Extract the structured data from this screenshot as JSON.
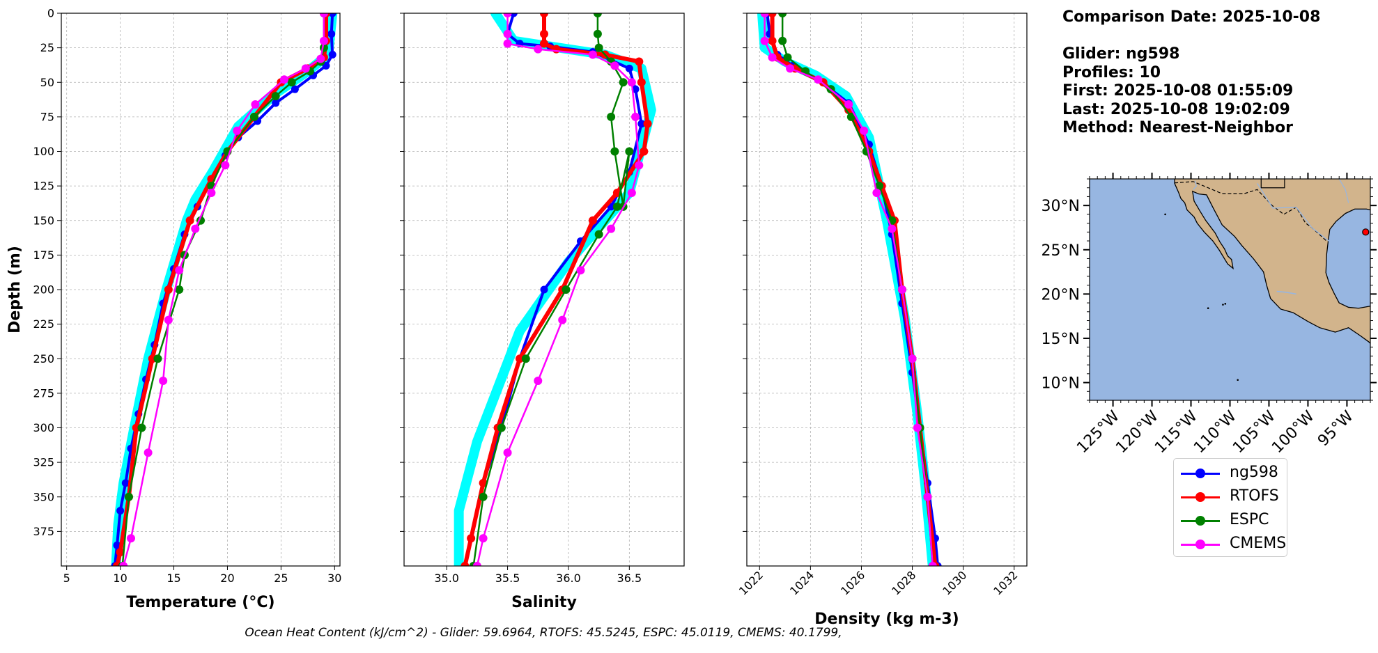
{
  "info": {
    "line1": "Comparison Date: 2025-10-08",
    "line2": "Glider: ng598",
    "line3": "Profiles: 10",
    "line4": "First: 2025-10-08 01:55:09",
    "line5": "Last: 2025-10-08 19:02:09",
    "line6": "Method: Nearest-Neighbor"
  },
  "footnote": "Ocean Heat Content (kJ/cm^2) - Glider: 59.6964,  RTOFS: 45.5245,  ESPC: 45.0119,  CMEMS: 40.1799,",
  "colors": {
    "ng598": "#0000ff",
    "RTOFS": "#ff0000",
    "ESPC": "#008000",
    "CMEMS": "#ff00ff",
    "ensemble": "#00ffff",
    "ocean": "#97b6e1",
    "land": "#d2b48c",
    "glider_marker": "#ff0000"
  },
  "chart_data": [
    {
      "type": "line",
      "xlabel": "Temperature (°C)",
      "ylabel": "Depth (m)",
      "xlim": [
        4.5,
        30.5
      ],
      "ylim": [
        400,
        0
      ],
      "xticks": [
        5,
        10,
        15,
        20,
        25,
        30
      ],
      "yticks": [
        0,
        25,
        50,
        75,
        100,
        125,
        150,
        175,
        200,
        225,
        250,
        275,
        300,
        325,
        350,
        375
      ],
      "grid": true,
      "series": [
        {
          "name": "ng598",
          "x": [
            29.8,
            29.7,
            29.8,
            29.2,
            28.0,
            26.3,
            24.5,
            22.8,
            21.0,
            19.8,
            18.5,
            17.2,
            16.0,
            15.0,
            14.0,
            13.2,
            12.4,
            11.7,
            11.0,
            10.5,
            10.0,
            9.7,
            9.5
          ],
          "y": [
            0,
            15,
            30,
            38,
            45,
            55,
            65,
            78,
            90,
            103,
            120,
            140,
            160,
            185,
            210,
            240,
            265,
            290,
            315,
            340,
            360,
            385,
            400
          ]
        },
        {
          "name": "RTOFS",
          "x": [
            29.2,
            29.2,
            29.0,
            27.5,
            25.0,
            22.5,
            20.0,
            18.5,
            16.5,
            14.5,
            13.0,
            11.5,
            10.8,
            10.0,
            9.7
          ],
          "y": [
            0,
            20,
            32,
            40,
            50,
            75,
            100,
            120,
            150,
            200,
            250,
            300,
            350,
            390,
            400
          ]
        },
        {
          "name": "ESPC",
          "x": [
            29.0,
            29.0,
            28.7,
            27.7,
            26.0,
            24.5,
            22.5,
            20.0,
            18.5,
            17.5,
            16.0,
            15.5,
            13.5,
            12.0,
            10.8,
            10.2
          ],
          "y": [
            0,
            25,
            35,
            42,
            50,
            60,
            75,
            100,
            125,
            150,
            175,
            200,
            250,
            300,
            350,
            400
          ]
        },
        {
          "name": "CMEMS",
          "x": [
            29.0,
            29.0,
            28.7,
            27.3,
            25.3,
            22.6,
            20.9,
            19.8,
            18.5,
            17.0,
            15.5,
            14.5,
            14.0,
            12.6,
            11.0,
            10.3
          ],
          "y": [
            0,
            20,
            33,
            40,
            48,
            66,
            85,
            110,
            130,
            156,
            186,
            222,
            266,
            318,
            380,
            400
          ]
        }
      ],
      "ensemble": {
        "x": [
          29.8,
          29.4,
          27.5,
          24.5,
          21.0,
          18.6,
          17.0,
          16.2,
          14.3,
          12.6,
          11.3,
          10.3,
          9.8,
          9.6
        ],
        "y": [
          0,
          30,
          42,
          58,
          82,
          115,
          135,
          150,
          200,
          250,
          300,
          340,
          370,
          400
        ]
      }
    },
    {
      "type": "line",
      "xlabel": "Salinity",
      "ylabel": "",
      "xlim": [
        34.65,
        36.95
      ],
      "ylim": [
        400,
        0
      ],
      "xticks": [
        35.0,
        35.5,
        36.0,
        36.5
      ],
      "xtick_labels": [
        "35.0",
        "35.5",
        "36.0",
        "36.5"
      ],
      "yticks": [
        0,
        25,
        50,
        75,
        100,
        125,
        150,
        175,
        200,
        225,
        250,
        275,
        300,
        325,
        350,
        375
      ],
      "grid": true,
      "series": [
        {
          "name": "ng598",
          "x": [
            35.55,
            35.5,
            35.6,
            35.85,
            36.2,
            36.5,
            36.55,
            36.6,
            36.5,
            36.35,
            36.1,
            35.8,
            35.6,
            35.45,
            35.3,
            35.2,
            35.15
          ],
          "y": [
            0,
            15,
            22,
            24,
            28,
            40,
            55,
            80,
            115,
            140,
            165,
            200,
            250,
            300,
            340,
            380,
            400
          ]
        },
        {
          "name": "RTOFS",
          "x": [
            35.8,
            35.8,
            35.8,
            35.9,
            36.3,
            36.58,
            36.6,
            36.65,
            36.62,
            36.4,
            36.2,
            35.95,
            35.6,
            35.42,
            35.3,
            35.2,
            35.15
          ],
          "y": [
            0,
            15,
            22,
            26,
            30,
            35,
            50,
            80,
            100,
            130,
            150,
            200,
            250,
            300,
            340,
            380,
            400
          ]
        },
        {
          "name": "ESPC",
          "x": [
            36.24,
            36.24,
            36.25,
            36.35,
            36.45,
            36.35,
            36.38,
            36.45,
            36.5,
            36.4,
            36.25,
            35.98,
            35.65,
            35.45,
            35.3,
            35.22
          ],
          "y": [
            0,
            15,
            25,
            35,
            50,
            75,
            100,
            140,
            100,
            140,
            160,
            200,
            250,
            300,
            350,
            400
          ]
        },
        {
          "name": "CMEMS",
          "x": [
            35.5,
            35.5,
            35.5,
            35.75,
            36.2,
            36.38,
            36.52,
            36.55,
            36.58,
            36.52,
            36.35,
            36.1,
            35.95,
            35.75,
            35.5,
            35.3,
            35.25
          ],
          "y": [
            0,
            15,
            22,
            26,
            30,
            38,
            50,
            75,
            110,
            130,
            156,
            186,
            222,
            266,
            318,
            380,
            400
          ]
        }
      ],
      "ensemble": {
        "x": [
          35.4,
          35.55,
          36.3,
          36.6,
          36.68,
          36.5,
          36.0,
          35.6,
          35.25,
          35.1,
          35.1
        ],
        "y": [
          0,
          20,
          30,
          40,
          70,
          130,
          180,
          230,
          310,
          360,
          400
        ]
      }
    },
    {
      "type": "line",
      "xlabel": "Density (kg m-3)",
      "ylabel": "",
      "xlim": [
        1021.5,
        1032.5
      ],
      "ylim": [
        400,
        0
      ],
      "xticks": [
        1022,
        1024,
        1026,
        1028,
        1030,
        1032
      ],
      "yticks": [
        0,
        25,
        50,
        75,
        100,
        125,
        150,
        175,
        200,
        225,
        250,
        275,
        300,
        325,
        350,
        375
      ],
      "grid": true,
      "series": [
        {
          "name": "ng598",
          "x": [
            1022.3,
            1022.4,
            1022.7,
            1023.3,
            1024.3,
            1025.5,
            1026.3,
            1026.8,
            1027.2,
            1027.6,
            1028.0,
            1028.3,
            1028.6,
            1028.9,
            1029.0
          ],
          "y": [
            0,
            15,
            30,
            38,
            48,
            65,
            95,
            125,
            160,
            210,
            260,
            300,
            340,
            380,
            400
          ]
        },
        {
          "name": "RTOFS",
          "x": [
            1022.5,
            1022.5,
            1022.7,
            1023.4,
            1024.5,
            1025.5,
            1026.3,
            1026.8,
            1027.3,
            1027.6,
            1028.0,
            1028.3,
            1028.6,
            1028.9
          ],
          "y": [
            0,
            20,
            32,
            40,
            50,
            70,
            100,
            125,
            150,
            200,
            250,
            300,
            350,
            400
          ]
        },
        {
          "name": "ESPC",
          "x": [
            1022.9,
            1022.9,
            1023.1,
            1023.8,
            1024.8,
            1025.6,
            1026.2,
            1026.7,
            1027.2,
            1027.6,
            1028.0,
            1028.3,
            1028.6,
            1028.8
          ],
          "y": [
            0,
            20,
            32,
            42,
            55,
            75,
            100,
            125,
            150,
            200,
            250,
            300,
            350,
            400
          ]
        },
        {
          "name": "CMEMS",
          "x": [
            1022.2,
            1022.2,
            1022.5,
            1023.2,
            1024.3,
            1025.5,
            1026.1,
            1026.6,
            1027.2,
            1027.6,
            1028.0,
            1028.2,
            1028.6,
            1028.8
          ],
          "y": [
            0,
            20,
            32,
            40,
            48,
            66,
            85,
            130,
            156,
            200,
            250,
            300,
            350,
            400
          ]
        }
      ],
      "ensemble": {
        "x": [
          1022.1,
          1022.2,
          1023.0,
          1024.2,
          1025.4,
          1026.3,
          1027.0,
          1027.7,
          1028.2,
          1028.5,
          1028.8
        ],
        "y": [
          0,
          25,
          35,
          45,
          60,
          90,
          150,
          220,
          290,
          340,
          400
        ]
      }
    }
  ],
  "map": {
    "lon_range": [
      -128,
      -92
    ],
    "lat_range": [
      8,
      33
    ],
    "lat_ticks": [
      10,
      15,
      20,
      25,
      30
    ],
    "lat_labels": [
      "10°N",
      "15°N",
      "20°N",
      "25°N",
      "30°N"
    ],
    "lon_ticks": [
      -125,
      -120,
      -115,
      -110,
      -105,
      -100,
      -95
    ],
    "lon_labels": [
      "125°W",
      "120°W",
      "115°W",
      "110°W",
      "105°W",
      "100°W",
      "95°W"
    ],
    "glider_position": {
      "lon": -92.6,
      "lat": 27.0
    }
  },
  "legend": [
    {
      "key": "ng598",
      "label": "ng598"
    },
    {
      "key": "RTOFS",
      "label": "RTOFS"
    },
    {
      "key": "ESPC",
      "label": "ESPC"
    },
    {
      "key": "CMEMS",
      "label": "CMEMS"
    }
  ]
}
